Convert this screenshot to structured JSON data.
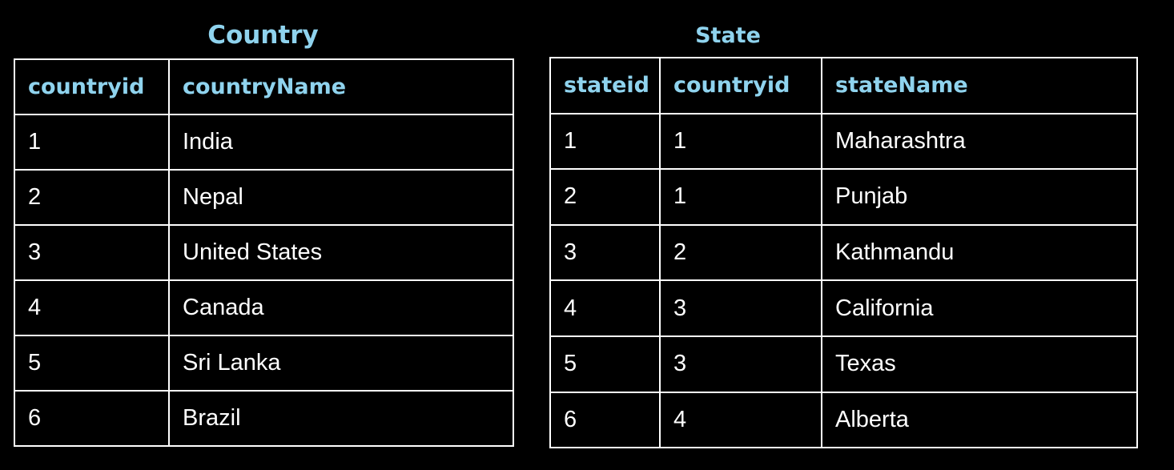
{
  "country_table": {
    "title": "Country",
    "columns": [
      "countryid",
      "countryName"
    ],
    "rows": [
      [
        "1",
        "India"
      ],
      [
        "2",
        "Nepal"
      ],
      [
        "3",
        "United States"
      ],
      [
        "4",
        "Canada"
      ],
      [
        "5",
        "Sri Lanka"
      ],
      [
        "6",
        "Brazil"
      ]
    ]
  },
  "state_table": {
    "title": "State",
    "columns": [
      "stateid",
      "countryid",
      "stateName"
    ],
    "rows": [
      [
        "1",
        "1",
        "Maharashtra"
      ],
      [
        "2",
        "1",
        "Punjab"
      ],
      [
        "3",
        "2",
        "Kathmandu"
      ],
      [
        "4",
        "3",
        "California"
      ],
      [
        "5",
        "3",
        "Texas"
      ],
      [
        "6",
        "4",
        "Alberta"
      ]
    ]
  },
  "colors": {
    "background": "#000000",
    "header_text": "#8fd3ee",
    "cell_text": "#ffffff",
    "border": "#ffffff"
  }
}
